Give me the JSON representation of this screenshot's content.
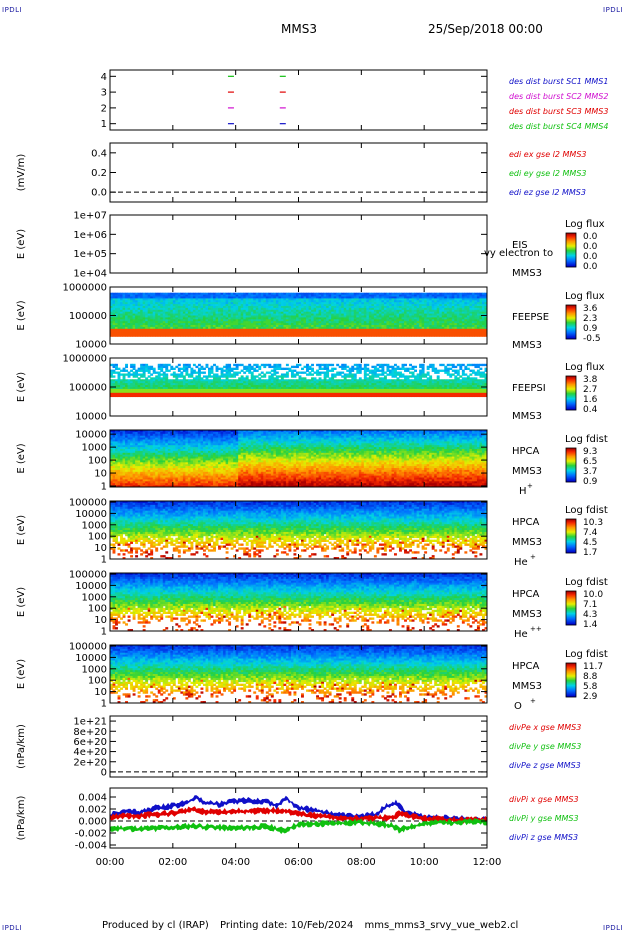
{
  "header": {
    "corner_label": "IPDLI",
    "spacecraft": "MMS3",
    "date": "25/Sep/2018 00:00"
  },
  "footer": {
    "produced_by": "Produced by cl (IRAP)",
    "printing_date": "Printing date: 10/Feb/2024",
    "filename": "mms_mms3_srvy_vue_web2.cl"
  },
  "colors": {
    "blue": "#1010c8",
    "magenta": "#d010d0",
    "red": "#e00000",
    "green": "#10c010"
  },
  "chart_data": {
    "type": "heatmap",
    "x_ticks": [
      "00:00",
      "02:00",
      "04:00",
      "06:00",
      "08:00",
      "10:00",
      "12:00"
    ],
    "x_range_hours": [
      0,
      12
    ],
    "panels": [
      {
        "id": "burst",
        "type": "scatter",
        "yticks": [
          "1",
          "2",
          "3",
          "4"
        ],
        "ylim": [
          0.6,
          4.4
        ],
        "legend": [
          {
            "text": "des dist burst SC1 MMS1",
            "color": "#1010c8"
          },
          {
            "text": "des dist burst SC2 MMS2",
            "color": "#d010d0"
          },
          {
            "text": "des dist burst SC3 MMS3",
            "color": "#e00000"
          },
          {
            "text": "des dist burst SC4 MMS4",
            "color": "#10c010"
          }
        ],
        "series": [
          {
            "sc": 1,
            "x": [
              3.85,
              5.5
            ],
            "y": [
              1,
              1
            ]
          },
          {
            "sc": 2,
            "x": [
              3.85,
              5.5
            ],
            "y": [
              2,
              2
            ]
          },
          {
            "sc": 3,
            "x": [
              3.85,
              5.5
            ],
            "y": [
              3,
              3
            ]
          },
          {
            "sc": 4,
            "x": [
              3.85,
              5.5
            ],
            "y": [
              4,
              4
            ]
          }
        ]
      },
      {
        "id": "edi",
        "type": "line",
        "ylabel": "(mV/m)",
        "yticks": [
          "0.0",
          "0.2",
          "0.4"
        ],
        "ylim": [
          -0.1,
          0.5
        ],
        "legend": [
          {
            "text": "edi ex gse l2 MMS3",
            "color": "#e00000"
          },
          {
            "text": "edi ey gse l2 MMS3",
            "color": "#10c010"
          },
          {
            "text": "edi ez gse l2 MMS3",
            "color": "#1010c8"
          }
        ]
      },
      {
        "id": "eis",
        "type": "heatmap",
        "ylabel": "E (eV)",
        "yticks": [
          "1e+04",
          "1e+05",
          "1e+06",
          "1e+07"
        ],
        "right_labels": [
          "EIS",
          "MMS3"
        ],
        "overlay_text": "vy electron to",
        "cbar_title": "Log flux",
        "cbar_ticks": [
          "0.0",
          "0.0",
          "0.0",
          "0.0"
        ]
      },
      {
        "id": "feepse",
        "type": "heatmap",
        "ylabel": "E (eV)",
        "yticks": [
          "10000",
          "100000",
          "1000000"
        ],
        "right_labels": [
          "FEEPSE",
          "MMS3"
        ],
        "cbar_title": "Log flux",
        "cbar_ticks": [
          "3.6",
          "2.3",
          "0.9",
          "-0.5"
        ]
      },
      {
        "id": "feepsi",
        "type": "heatmap",
        "ylabel": "E (eV)",
        "yticks": [
          "10000",
          "100000",
          "1000000"
        ],
        "right_labels": [
          "FEEPSI",
          "MMS3"
        ],
        "cbar_title": "Log flux",
        "cbar_ticks": [
          "3.8",
          "2.7",
          "1.6",
          "0.4"
        ]
      },
      {
        "id": "hpca_h",
        "type": "heatmap",
        "ylabel": "E (eV)",
        "yticks": [
          "1",
          "10",
          "100",
          "1000",
          "10000"
        ],
        "right_labels": [
          "HPCA",
          "MMS3"
        ],
        "species": "H",
        "species_sup": "+",
        "cbar_title": "Log fdist",
        "cbar_ticks": [
          "9.3",
          "6.5",
          "3.7",
          "0.9"
        ]
      },
      {
        "id": "hpca_he",
        "type": "heatmap",
        "ylabel": "E (eV)",
        "yticks": [
          "1",
          "10",
          "100",
          "1000",
          "10000",
          "100000"
        ],
        "right_labels": [
          "HPCA",
          "MMS3"
        ],
        "species": "He",
        "species_sup": "+",
        "cbar_title": "Log fdist",
        "cbar_ticks": [
          "10.3",
          "7.4",
          "4.5",
          "1.7"
        ]
      },
      {
        "id": "hpca_he2",
        "type": "heatmap",
        "ylabel": "E (eV)",
        "yticks": [
          "1",
          "10",
          "100",
          "1000",
          "10000",
          "100000"
        ],
        "right_labels": [
          "HPCA",
          "MMS3"
        ],
        "species": "He",
        "species_sup": "++",
        "cbar_title": "Log fdist",
        "cbar_ticks": [
          "10.0",
          "7.1",
          "4.3",
          "1.4"
        ]
      },
      {
        "id": "hpca_o",
        "type": "heatmap",
        "ylabel": "E (eV)",
        "yticks": [
          "1",
          "10",
          "100",
          "1000",
          "10000",
          "100000"
        ],
        "right_labels": [
          "HPCA",
          "MMS3"
        ],
        "species": "O",
        "species_sup": "+",
        "cbar_title": "Log fdist",
        "cbar_ticks": [
          "11.7",
          "8.8",
          "5.8",
          "2.9"
        ]
      },
      {
        "id": "divpe",
        "type": "line",
        "ylabel": "(nPa/km)",
        "yticks": [
          "0",
          "2e+20",
          "4e+20",
          "6e+20",
          "8e+20",
          "1e+21"
        ],
        "ylim": [
          -1e+20,
          1.1e+21
        ],
        "legend": [
          {
            "text": "divPe x gse MMS3",
            "color": "#e00000"
          },
          {
            "text": "divPe y gse MMS3",
            "color": "#10c010"
          },
          {
            "text": "divPe z gse MMS3",
            "color": "#1010c8"
          }
        ]
      },
      {
        "id": "divpi",
        "type": "line",
        "ylabel": "(nPa/km)",
        "yticks": [
          "-0.004",
          "-0.002",
          "0.000",
          "0.002",
          "0.004"
        ],
        "ylim": [
          -0.0045,
          0.0055
        ],
        "legend": [
          {
            "text": "divPi x gse MMS3",
            "color": "#e00000"
          },
          {
            "text": "divPi y gse MMS3",
            "color": "#10c010"
          },
          {
            "text": "divPi z gse MMS3",
            "color": "#1010c8"
          }
        ],
        "series": [
          {
            "name": "divPi z gse MMS3",
            "x": [
              0,
              0.5,
              1,
              1.5,
              2,
              2.5,
              2.7,
              3,
              3.5,
              4,
              4.5,
              5,
              5.3,
              5.6,
              6,
              6.5,
              7,
              7.5,
              8,
              8.5,
              8.8,
              9.1,
              9.4,
              10,
              10.5,
              11,
              11.5,
              12
            ],
            "y": [
              0.001,
              0.0015,
              0.0015,
              0.0022,
              0.0025,
              0.0032,
              0.004,
              0.003,
              0.0028,
              0.0033,
              0.0034,
              0.0033,
              0.0025,
              0.0038,
              0.0022,
              0.0018,
              0.0012,
              0.0008,
              0.0007,
              0.0012,
              0.0025,
              0.003,
              0.0015,
              0.0006,
              0.0005,
              0.0004,
              0.0003,
              0.0003
            ]
          },
          {
            "name": "divPi x gse MMS3",
            "x": [
              0,
              1,
              2,
              2.7,
              3,
              4,
              5,
              5.5,
              6,
              7,
              8,
              9,
              9.2,
              10,
              11,
              12
            ],
            "y": [
              0.0007,
              0.0009,
              0.0013,
              0.002,
              0.0015,
              0.0016,
              0.0017,
              0.0018,
              0.0012,
              0.0006,
              0.0004,
              0.0006,
              0.0012,
              0.0004,
              0.0002,
              0.0002
            ]
          },
          {
            "name": "divPi y gse MMS3",
            "x": [
              0,
              1,
              2,
              2.7,
              3,
              4,
              5,
              5.5,
              6,
              7,
              8,
              9,
              9.2,
              10,
              11,
              12
            ],
            "y": [
              -0.0012,
              -0.0013,
              -0.0011,
              -0.0008,
              -0.001,
              -0.0012,
              -0.0009,
              -0.0016,
              -0.0006,
              -0.0004,
              -0.0002,
              -0.0008,
              -0.0015,
              -0.0004,
              -0.0002,
              -0.0001
            ]
          }
        ]
      }
    ]
  }
}
